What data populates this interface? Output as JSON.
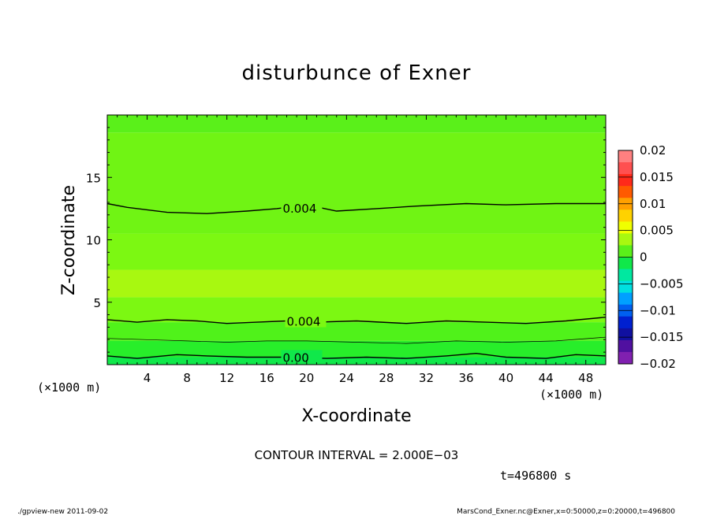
{
  "chart_data": {
    "type": "contour",
    "title": "disturbunce of Exner",
    "xlabel": "X-coordinate",
    "ylabel": "Z-coordinate",
    "x_unit_left": "(×1000 m)",
    "x_unit_right": "(×1000 m)",
    "xlim": [
      0,
      50
    ],
    "ylim": [
      0,
      20
    ],
    "x_ticks": [
      "4",
      "8",
      "12",
      "16",
      "20",
      "24",
      "28",
      "32",
      "36",
      "40",
      "44",
      "48"
    ],
    "x_tick_values": [
      4,
      8,
      12,
      16,
      20,
      24,
      28,
      32,
      36,
      40,
      44,
      48
    ],
    "y_ticks": [
      "5",
      "10",
      "15"
    ],
    "y_tick_values": [
      5,
      10,
      15
    ],
    "bands": [
      {
        "z_bottom": 0.0,
        "z_top": 0.6,
        "color": "#10e84a"
      },
      {
        "z_bottom": 0.6,
        "z_top": 1.9,
        "color": "#28ee2a"
      },
      {
        "z_bottom": 1.9,
        "z_top": 3.4,
        "color": "#50f21a"
      },
      {
        "z_bottom": 3.4,
        "z_top": 5.4,
        "color": "#7cf812"
      },
      {
        "z_bottom": 5.4,
        "z_top": 7.6,
        "color": "#a8f810"
      },
      {
        "z_bottom": 7.6,
        "z_top": 10.5,
        "color": "#7cf812"
      },
      {
        "z_bottom": 10.5,
        "z_top": 18.6,
        "color": "#70f414"
      },
      {
        "z_bottom": 18.6,
        "z_top": 20.0,
        "color": "#5af01a"
      }
    ],
    "contours": [
      {
        "label": "0.004",
        "label_x": 17.6,
        "line_width": 1.4,
        "points": [
          [
            0,
            12.9
          ],
          [
            2,
            12.6
          ],
          [
            6,
            12.2
          ],
          [
            10,
            12.1
          ],
          [
            14,
            12.3
          ],
          [
            17,
            12.5
          ],
          [
            20,
            12.8
          ],
          [
            23,
            12.3
          ],
          [
            27,
            12.5
          ],
          [
            31,
            12.7
          ],
          [
            36,
            12.9
          ],
          [
            40,
            12.8
          ],
          [
            45,
            12.9
          ],
          [
            50,
            12.9
          ]
        ]
      },
      {
        "label": "0.004",
        "label_x": 18.0,
        "line_width": 1.4,
        "points": [
          [
            0,
            3.6
          ],
          [
            3,
            3.4
          ],
          [
            6,
            3.6
          ],
          [
            9,
            3.5
          ],
          [
            12,
            3.3
          ],
          [
            15,
            3.4
          ],
          [
            18,
            3.5
          ],
          [
            21,
            3.4
          ],
          [
            25,
            3.5
          ],
          [
            30,
            3.3
          ],
          [
            34,
            3.5
          ],
          [
            38,
            3.4
          ],
          [
            42,
            3.3
          ],
          [
            46,
            3.5
          ],
          [
            50,
            3.8
          ]
        ]
      },
      {
        "label": "",
        "label_x": null,
        "line_width": 0.7,
        "points": [
          [
            0,
            2.1
          ],
          [
            4,
            2.0
          ],
          [
            8,
            1.9
          ],
          [
            12,
            1.8
          ],
          [
            16,
            1.9
          ],
          [
            20,
            1.9
          ],
          [
            25,
            1.8
          ],
          [
            30,
            1.7
          ],
          [
            35,
            1.9
          ],
          [
            40,
            1.8
          ],
          [
            45,
            1.9
          ],
          [
            50,
            2.2
          ]
        ]
      },
      {
        "label": "0.00",
        "label_x": 17.6,
        "line_width": 1.4,
        "points": [
          [
            0,
            0.7
          ],
          [
            3,
            0.5
          ],
          [
            7,
            0.8
          ],
          [
            10,
            0.7
          ],
          [
            14,
            0.6
          ],
          [
            18,
            0.6
          ],
          [
            22,
            0.5
          ],
          [
            26,
            0.6
          ],
          [
            30,
            0.5
          ],
          [
            34,
            0.7
          ],
          [
            37,
            0.9
          ],
          [
            40,
            0.6
          ],
          [
            44,
            0.5
          ],
          [
            47,
            0.8
          ],
          [
            50,
            0.7
          ]
        ]
      }
    ],
    "colorbar": {
      "tick_labels": [
        "0.02",
        "0.015",
        "0.01",
        "0.005",
        "0",
        "−0.005",
        "−0.01",
        "−0.015",
        "−0.02"
      ],
      "tick_values": [
        0.02,
        0.015,
        0.01,
        0.005,
        0,
        -0.005,
        -0.01,
        -0.015,
        -0.02
      ],
      "colors": [
        "#ff8080",
        "#ff5050",
        "#ff2a1a",
        "#ff5a00",
        "#ffa000",
        "#ffd200",
        "#f0ff00",
        "#a8f810",
        "#5af01a",
        "#10e84a",
        "#00e8a0",
        "#00e0e0",
        "#00a0ff",
        "#0060f0",
        "#0020d0",
        "#1010a0",
        "#5010a0",
        "#8020b0"
      ]
    },
    "contour_interval": "CONTOUR INTERVAL = 2.000E−03",
    "time_label": "t=496800 s",
    "footer_left": "./gpview-new   2011-09-02",
    "footer_right": "MarsCond_Exner.nc@Exner,x=0:50000,z=0:20000,t=496800"
  }
}
